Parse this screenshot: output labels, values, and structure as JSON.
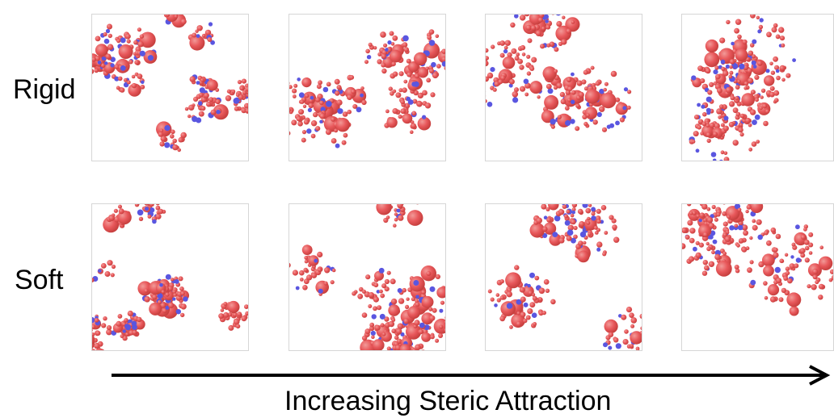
{
  "rows": [
    {
      "label": "Rigid"
    },
    {
      "label": "Soft"
    }
  ],
  "caption": "Increasing Steric Attraction",
  "colors": {
    "particle": "#e8585b",
    "particle_shade": "#c8403f",
    "particle_highlight": "#f29a98",
    "patch": "#5a56e0",
    "arrow": "#000000"
  },
  "icons": [
    "right-arrow-icon"
  ]
}
